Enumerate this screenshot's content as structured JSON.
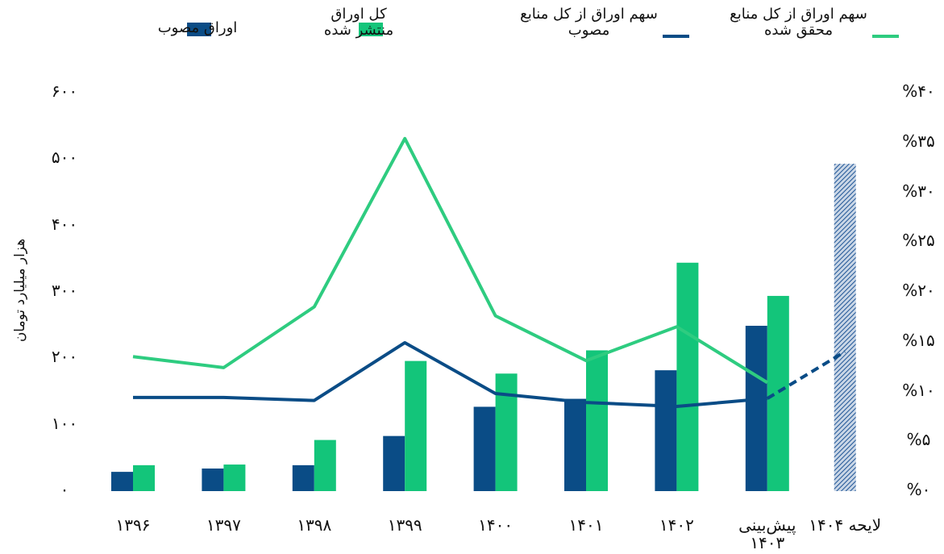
{
  "chart_data": {
    "type": "bar_line",
    "y_label": "هزار میلیارد تومان",
    "categories": [
      "۱۳۹۶",
      "۱۳۹۷",
      "۱۳۹۸",
      "۱۳۹۹",
      "۱۴۰۰",
      "۱۴۰۱",
      "۱۴۰۲",
      "پیش‌بینی ۱۴۰۳",
      "لایحه ۱۴۰۴"
    ],
    "hatched": [
      false,
      false,
      false,
      false,
      false,
      false,
      false,
      false,
      true
    ],
    "series": [
      {
        "name": "اوراق مصوب",
        "color": "#0a4c86",
        "kind": "bar",
        "values": [
          29,
          34,
          39,
          83,
          127,
          139,
          182,
          249,
          493
        ]
      },
      {
        "name": "کل اوراق منتشر شده",
        "color": "#13c57a",
        "kind": "bar",
        "values": [
          39,
          40,
          77,
          196,
          177,
          212,
          344,
          294,
          null
        ]
      },
      {
        "name": "سهم اوراق از کل منابع مصوب",
        "color": "#0a4c86",
        "kind": "line",
        "axis": "y2",
        "dash_last_segment": true,
        "values": [
          9.4,
          9.4,
          9.1,
          14.9,
          9.8,
          8.9,
          8.5,
          9.3,
          14.0
        ]
      },
      {
        "name": "سهم اوراق از کل منابع محقق شده",
        "color": "#2ecc80",
        "kind": "line",
        "axis": "y2",
        "dash_last_segment": false,
        "values": [
          13.5,
          12.4,
          18.5,
          35.4,
          17.6,
          13.1,
          16.5,
          10.9,
          null
        ]
      }
    ],
    "ylim": [
      0,
      600
    ],
    "yticks": [
      {
        "value": 0,
        "label": "۰"
      },
      {
        "value": 100,
        "label": "۱۰۰"
      },
      {
        "value": 200,
        "label": "۲۰۰"
      },
      {
        "value": 300,
        "label": "۳۰۰"
      },
      {
        "value": 400,
        "label": "۴۰۰"
      },
      {
        "value": 500,
        "label": "۵۰۰"
      },
      {
        "value": 600,
        "label": "۶۰۰"
      }
    ],
    "y2lim": [
      0,
      40
    ],
    "y2ticks": [
      {
        "value": 0,
        "label": "%۰"
      },
      {
        "value": 5,
        "label": "%۵"
      },
      {
        "value": 10,
        "label": "%۱۰"
      },
      {
        "value": 15,
        "label": "%۱۵"
      },
      {
        "value": 20,
        "label": "%۲۰"
      },
      {
        "value": 25,
        "label": "%۲۵"
      },
      {
        "value": 30,
        "label": "%۳۰"
      },
      {
        "value": 35,
        "label": "%۳۵"
      },
      {
        "value": 40,
        "label": "%۴۰"
      }
    ],
    "grid": false
  }
}
